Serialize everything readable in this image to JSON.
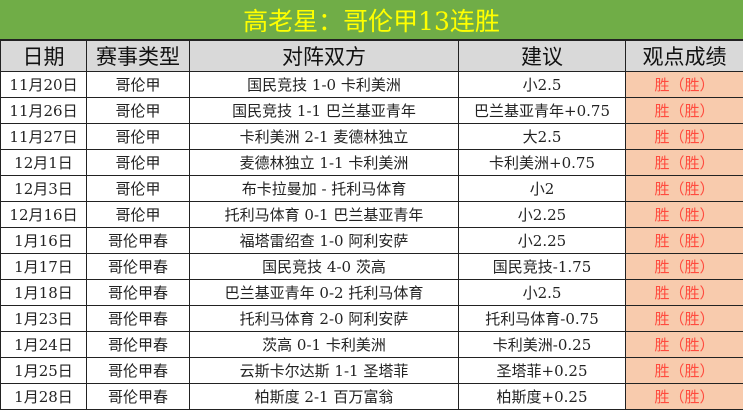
{
  "title": "高老星：哥伦甲13连胜",
  "headers": [
    "日期",
    "赛事类型",
    "对阵双方",
    "建议",
    "观点成绩"
  ],
  "colors": {
    "title_bg": "#70AD47",
    "title_text": "#FFFF00",
    "header_bg": "#D9D9D9",
    "result_bg": "#F8CBAD",
    "result_text": "#FF4B3E"
  },
  "rows": [
    [
      "11月20日",
      "哥伦甲",
      "国民竞技 1-0 卡利美洲",
      "小2.5",
      "胜（胜）"
    ],
    [
      "11月26日",
      "哥伦甲",
      "国民竞技 1-1 巴兰基亚青年",
      "巴兰基亚青年+0.75",
      "胜（胜）"
    ],
    [
      "11月27日",
      "哥伦甲",
      "卡利美洲 2-1 麦德林独立",
      "大2.5",
      "胜（胜）"
    ],
    [
      "12月1日",
      "哥伦甲",
      "麦德林独立 1-1 卡利美洲",
      "卡利美洲+0.75",
      "胜（胜）"
    ],
    [
      "12月3日",
      "哥伦甲",
      "布卡拉曼加 - 托利马体育",
      "小2",
      "胜（胜）"
    ],
    [
      "12月16日",
      "哥伦甲",
      "托利马体育 0-1 巴兰基亚青年",
      "小2.25",
      "胜（胜）"
    ],
    [
      "1月16日",
      "哥伦甲春",
      "福塔雷绍查 1-0 阿利安萨",
      "小2.25",
      "胜（胜）"
    ],
    [
      "1月17日",
      "哥伦甲春",
      "国民竞技 4-0 茨高",
      "国民竞技-1.75",
      "胜（胜）"
    ],
    [
      "1月18日",
      "哥伦甲春",
      "巴兰基亚青年 0-2 托利马体育",
      "小2.5",
      "胜（胜）"
    ],
    [
      "1月23日",
      "哥伦甲春",
      "托利马体育 2-0 阿利安萨",
      "托利马体育-0.75",
      "胜（胜）"
    ],
    [
      "1月24日",
      "哥伦甲春",
      "茨高 0-1 卡利美洲",
      "卡利美洲-0.25",
      "胜（胜）"
    ],
    [
      "1月25日",
      "哥伦甲春",
      "云斯卡尔达斯 1-1 圣塔菲",
      "圣塔菲+0.25",
      "胜（胜）"
    ],
    [
      "1月28日",
      "哥伦甲春",
      "柏斯度 2-1 百万富翁",
      "柏斯度+0.25",
      "胜（胜）"
    ]
  ]
}
